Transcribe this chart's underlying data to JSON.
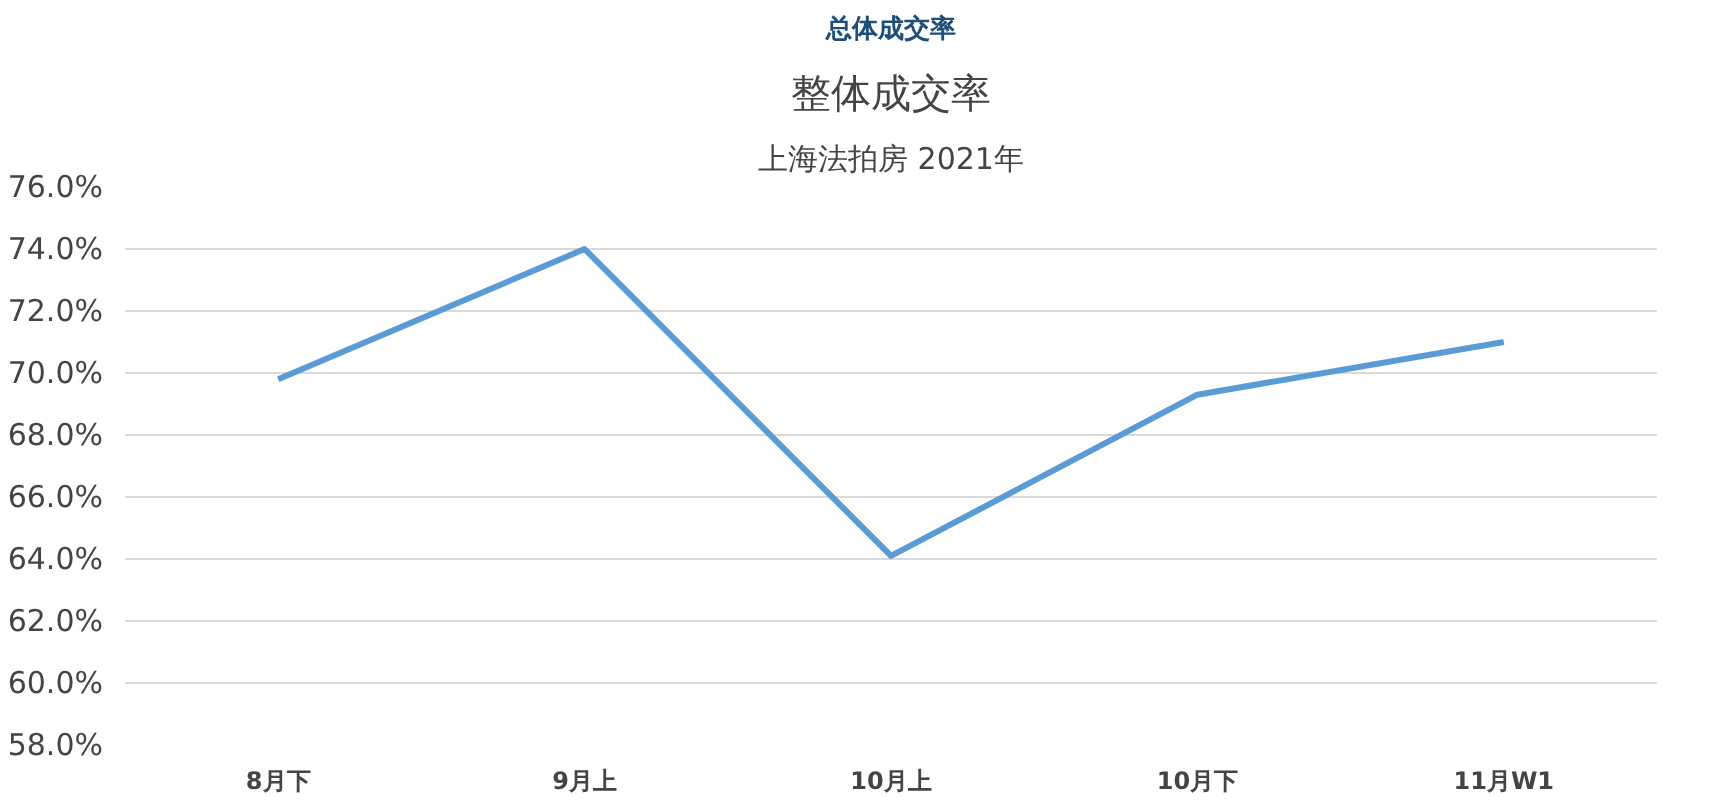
{
  "chart_data": {
    "type": "line",
    "title": "整体成交率",
    "subtitle": "上海法拍房 2021年",
    "annotations": [
      "总体成交率"
    ],
    "categories": [
      "8月下",
      "9月上",
      "10月上",
      "10月下",
      "11月W1"
    ],
    "series": [
      {
        "color": "#5b9bd5",
        "values": [
          69.8,
          74.0,
          64.1,
          69.3,
          71.0
        ]
      }
    ],
    "ylim": [
      58,
      76
    ],
    "yticks": [
      {
        "value": 58,
        "label": "58.0%"
      },
      {
        "value": 60,
        "label": "60.0%"
      },
      {
        "value": 62,
        "label": "62.0%"
      },
      {
        "value": 64,
        "label": "64.0%"
      },
      {
        "value": 66,
        "label": "66.0%"
      },
      {
        "value": 68,
        "label": "68.0%"
      },
      {
        "value": 70,
        "label": "70.0%"
      },
      {
        "value": 72,
        "label": "72.0%"
      },
      {
        "value": 74,
        "label": "74.0%"
      },
      {
        "value": 76,
        "label": "76.0%"
      }
    ],
    "grid": "y",
    "marker": "none",
    "line_style": "solid"
  }
}
